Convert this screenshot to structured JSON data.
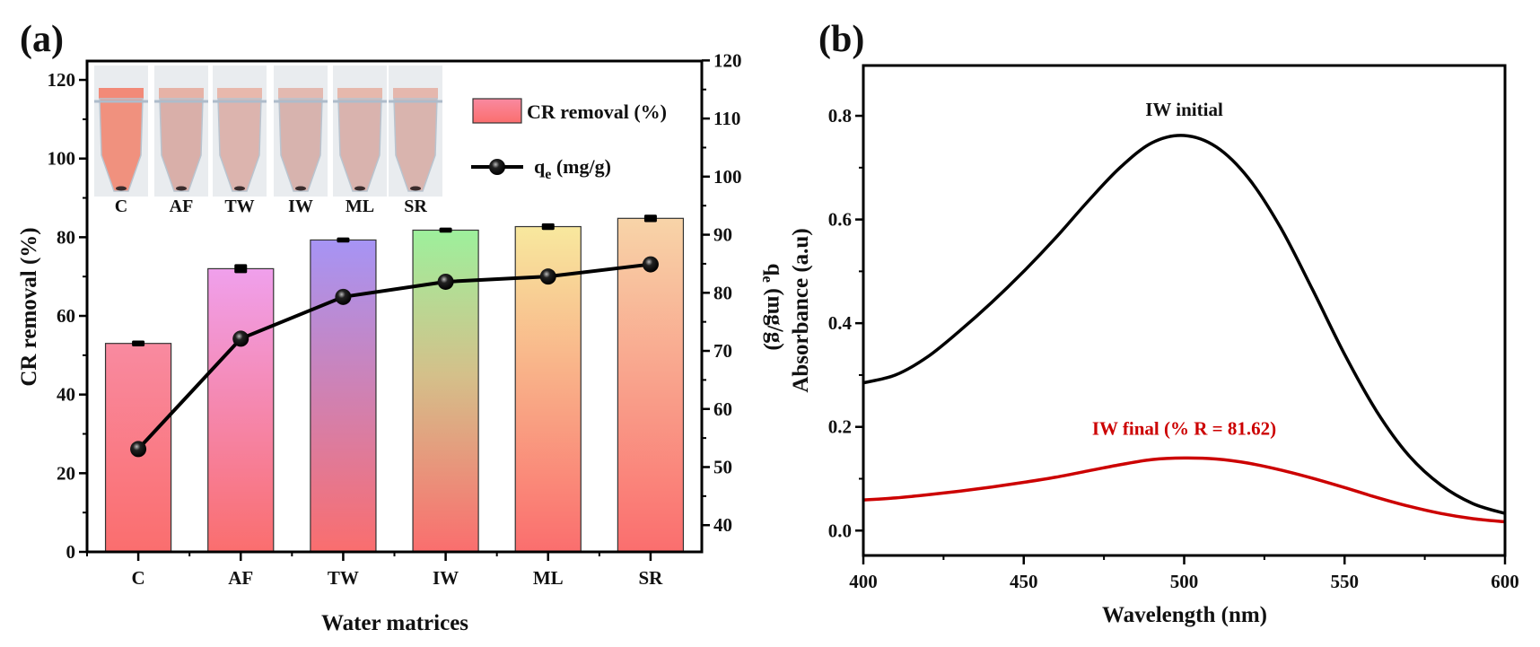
{
  "figure": {
    "panels": [
      "(a)",
      "(b)"
    ]
  },
  "chart_data": [
    {
      "type": "bar",
      "panel_label": "(a)",
      "title": "",
      "xlabel": "Water matrices",
      "ylabel": "CR removal (%)",
      "y2label_main": "q",
      "y2label_sub": "e",
      "y2label_units": " (mg/g)",
      "categories": [
        "C",
        "AF",
        "TW",
        "IW",
        "ML",
        "SR"
      ],
      "ylim": [
        0,
        124.8
      ],
      "yticks": [
        0,
        20,
        40,
        60,
        80,
        100,
        120
      ],
      "y2lim": [
        35.4,
        119.9
      ],
      "y2ticks": [
        40,
        50,
        60,
        70,
        80,
        90,
        100,
        110,
        120
      ],
      "series": [
        {
          "name": "CR removal (%)",
          "type": "bar",
          "axis": "left",
          "values": [
            53.0,
            72.0,
            79.3,
            81.8,
            82.7,
            84.8
          ],
          "errors": [
            0.4,
            0.8,
            0.3,
            0.3,
            0.5,
            0.6
          ],
          "top_colors": [
            "#f98aa0",
            "#f0a0ec",
            "#a694f5",
            "#9df09c",
            "#f8e89e",
            "#f8d4a8"
          ],
          "bottom_color": "#fa6e6e"
        },
        {
          "name": "q_e (mg/g)",
          "type": "line",
          "axis": "right",
          "values": [
            53.1,
            72.1,
            79.3,
            81.9,
            82.8,
            84.9
          ],
          "color": "#000000"
        }
      ],
      "legend": {
        "placement": "top-right",
        "entries": [
          {
            "label": "CR removal (%)",
            "kind": "bar"
          },
          {
            "label_main": "q",
            "label_sub": "e",
            "label_units": " (mg/g)",
            "kind": "line-marker"
          }
        ]
      },
      "inset": {
        "description": "photo of sample tubes",
        "labels": [
          "C",
          "AF",
          "TW",
          "IW",
          "ML",
          "SR"
        ]
      }
    },
    {
      "type": "line",
      "panel_label": "(b)",
      "title": "",
      "xlabel": "Wavelength (nm)",
      "ylabel": "Absorbance (a.u)",
      "xlim": [
        400,
        600
      ],
      "xticks": [
        400,
        450,
        500,
        550,
        600
      ],
      "ylim": [
        -0.048,
        0.897
      ],
      "yticks": [
        0.0,
        0.2,
        0.4,
        0.6,
        0.8
      ],
      "ytick_labels": [
        "0.0",
        "0.2",
        "0.4",
        "0.6",
        "0.8"
      ],
      "series": [
        {
          "name": "IW initial",
          "color": "#000000",
          "x": [
            400,
            410,
            420,
            430,
            440,
            450,
            460,
            470,
            480,
            490,
            500,
            510,
            520,
            530,
            540,
            550,
            560,
            570,
            580,
            590,
            600
          ],
          "y": [
            0.285,
            0.3,
            0.335,
            0.385,
            0.44,
            0.5,
            0.565,
            0.635,
            0.7,
            0.748,
            0.762,
            0.74,
            0.68,
            0.585,
            0.465,
            0.34,
            0.23,
            0.145,
            0.088,
            0.052,
            0.033
          ]
        },
        {
          "name": "IW final (% R = 81.62)",
          "color": "#cc0000",
          "x": [
            400,
            410,
            420,
            430,
            440,
            450,
            460,
            470,
            480,
            490,
            500,
            510,
            520,
            530,
            540,
            550,
            560,
            570,
            580,
            590,
            600
          ],
          "y": [
            0.059,
            0.063,
            0.069,
            0.076,
            0.084,
            0.093,
            0.103,
            0.115,
            0.127,
            0.137,
            0.14,
            0.138,
            0.13,
            0.117,
            0.101,
            0.083,
            0.064,
            0.047,
            0.033,
            0.023,
            0.017
          ]
        }
      ],
      "annotations": [
        {
          "text": "IW initial",
          "color": "#111111",
          "at": [
            500,
            0.8
          ]
        },
        {
          "text": "IW final (% R = 81.62)",
          "color": "#cc0000",
          "at": [
            500,
            0.185
          ]
        }
      ]
    }
  ]
}
